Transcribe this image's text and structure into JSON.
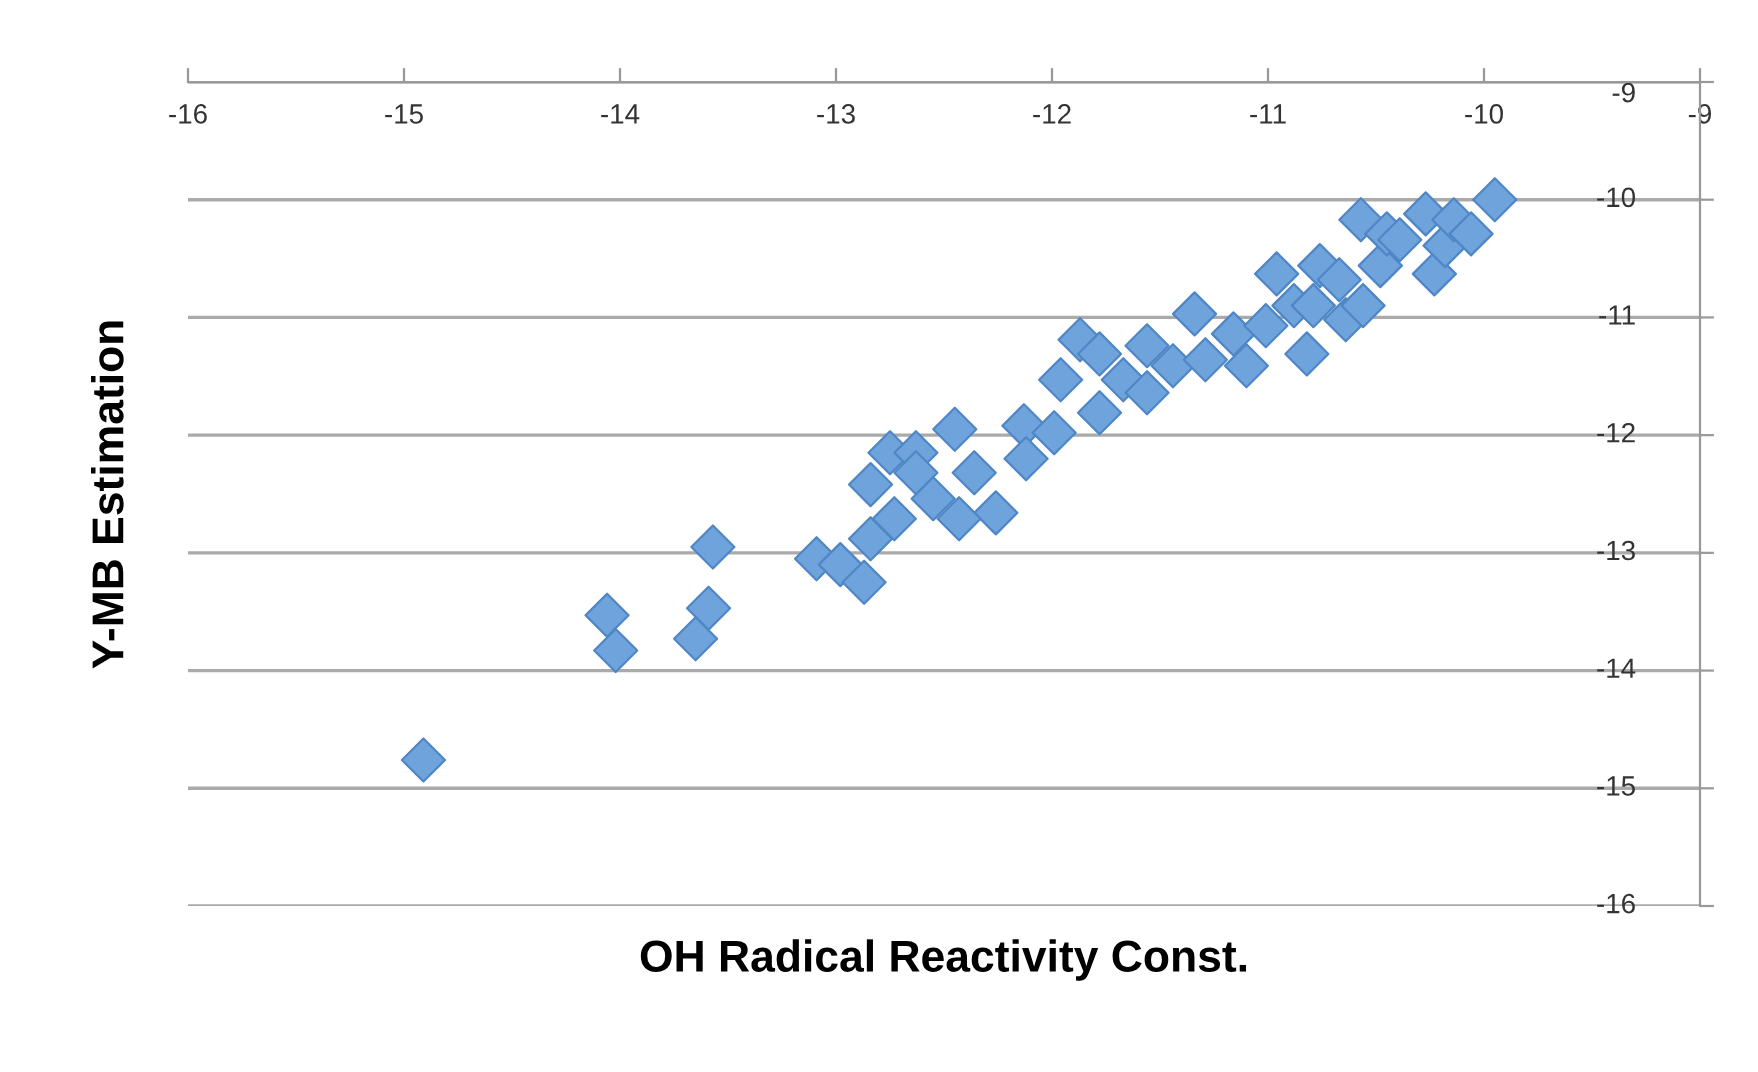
{
  "chart_data": {
    "type": "scatter",
    "xlabel": "OH Radical Reactivity Const.",
    "ylabel": "Y-MB Estimation",
    "x": [
      -14.91,
      -14.06,
      -14.02,
      -13.57,
      -13.59,
      -13.65,
      -13.09,
      -12.98,
      -12.87,
      -12.84,
      -12.73,
      -12.84,
      -12.75,
      -12.63,
      -12.63,
      -12.55,
      -12.45,
      -12.36,
      -12.26,
      -12.43,
      -12.13,
      -12.12,
      -11.99,
      -11.96,
      -11.87,
      -11.78,
      -11.78,
      -11.67,
      -11.56,
      -11.56,
      -11.44,
      -11.34,
      -11.29,
      -11.16,
      -11.1,
      -11.01,
      -10.96,
      -10.88,
      -10.82,
      -10.76,
      -10.79,
      -10.67,
      -10.64,
      -10.57,
      -10.56,
      -10.48,
      -10.45,
      -10.39,
      -10.27,
      -10.23,
      -10.18,
      -10.14,
      -10.06,
      -9.95
    ],
    "values": [
      -14.76,
      -13.53,
      -13.83,
      -12.95,
      -13.47,
      -13.73,
      -13.05,
      -13.1,
      -13.25,
      -12.88,
      -12.71,
      -12.42,
      -12.15,
      -12.15,
      -12.32,
      -12.54,
      -11.95,
      -12.32,
      -12.66,
      -12.71,
      -11.92,
      -12.2,
      -11.98,
      -11.53,
      -11.19,
      -11.31,
      -11.81,
      -11.53,
      -11.24,
      -11.64,
      -11.41,
      -10.97,
      -11.36,
      -11.14,
      -11.41,
      -11.07,
      -10.63,
      -10.9,
      -11.31,
      -10.56,
      -10.9,
      -10.68,
      -11.02,
      -10.17,
      -10.9,
      -10.56,
      -10.29,
      -10.34,
      -10.12,
      -10.63,
      -10.39,
      -10.17,
      -10.29,
      -10.0
    ],
    "color": "#6fa3dc",
    "marker": "diamond",
    "xlim": [
      -16,
      -9
    ],
    "ylim": [
      -16,
      -9
    ],
    "xticks": [
      -16,
      -15,
      -14,
      -13,
      -12,
      -11,
      -10,
      -9
    ],
    "yticks": [
      -16,
      -15,
      -14,
      -13,
      -12,
      -11,
      -10,
      -9
    ],
    "grid": "y"
  }
}
